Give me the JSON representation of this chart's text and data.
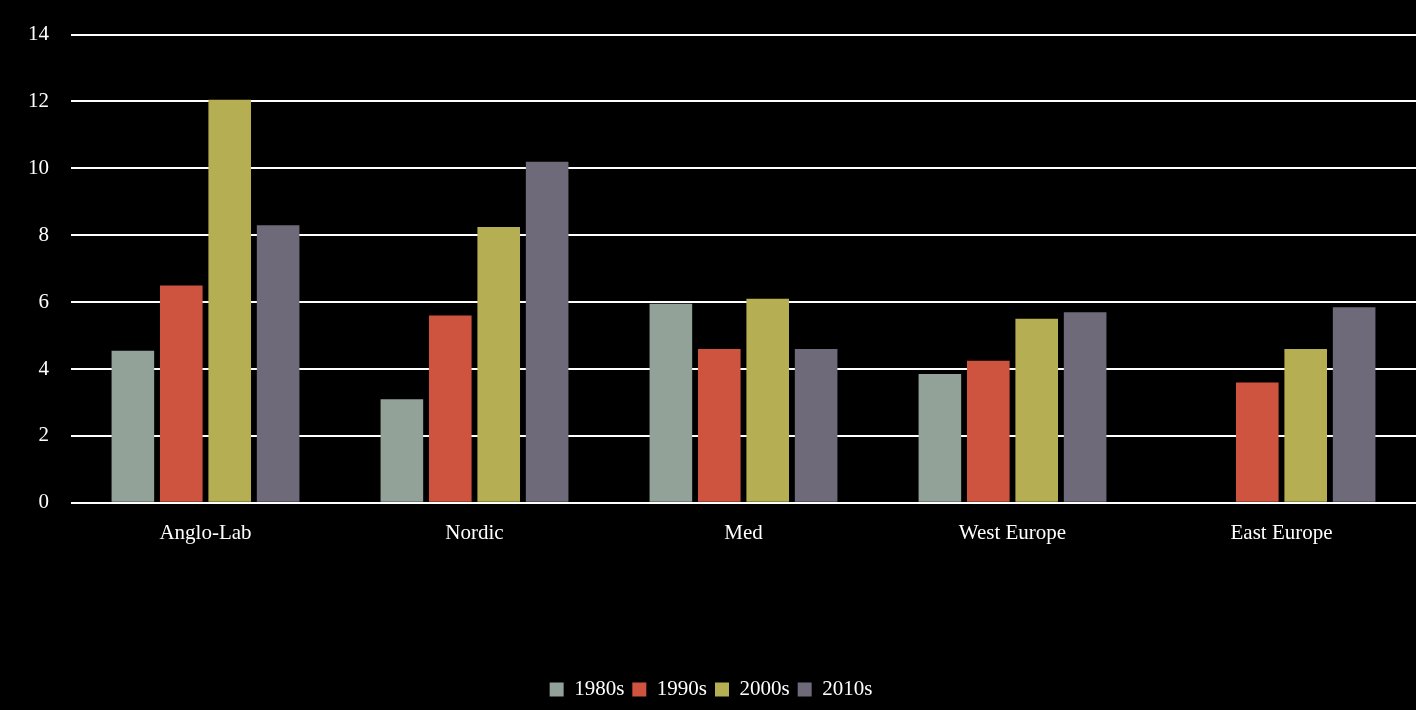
{
  "chart_data": {
    "type": "bar",
    "categories": [
      "Anglo-Lab",
      "Nordic",
      "Med",
      "West Europe",
      "East Europe"
    ],
    "series": [
      {
        "name": "1980s",
        "color": "#93a299",
        "values": [
          4.55,
          3.1,
          5.95,
          3.85,
          null
        ]
      },
      {
        "name": "1990s",
        "color": "#cf543f",
        "values": [
          6.5,
          5.6,
          4.6,
          4.25,
          3.6
        ]
      },
      {
        "name": "2000s",
        "color": "#b5ae53",
        "values": [
          12.05,
          8.25,
          6.1,
          5.5,
          4.6
        ]
      },
      {
        "name": "2010s",
        "color": "#6f6a7a",
        "values": [
          8.3,
          10.2,
          4.6,
          5.7,
          5.85
        ]
      }
    ],
    "ylim": [
      0,
      14
    ],
    "yticks": [
      0,
      2,
      4,
      6,
      8,
      10,
      12,
      14
    ],
    "grid": "y",
    "legend": "bottom"
  }
}
